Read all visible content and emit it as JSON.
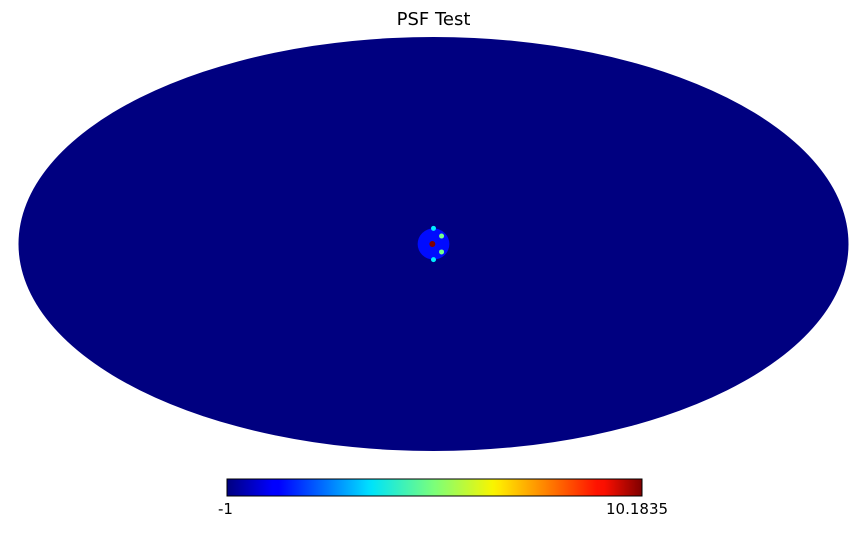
{
  "chart_data": {
    "type": "heatmap",
    "projection": "mollweide",
    "title": "PSF Test",
    "colormap": "jet",
    "colorbar": {
      "min": -1,
      "max": 10.1835,
      "min_label": "-1",
      "max_label": "10.1835",
      "orientation": "horizontal",
      "placement": "bottom"
    },
    "background_value": -1,
    "features": [
      {
        "name": "central-disk",
        "lon": 0,
        "lat": 0,
        "radius_deg": 5.5,
        "value": 0.0
      },
      {
        "name": "center-peak",
        "lon": 0.5,
        "lat": 0,
        "value": 10.1835
      },
      {
        "name": "top-spot",
        "lon": 0,
        "lat": 5.5,
        "value": 3.0
      },
      {
        "name": "bottom-spot",
        "lon": 0,
        "lat": -5.5,
        "value": 3.0
      },
      {
        "name": "upper-right-spot",
        "lon": -3.5,
        "lat": 2.8,
        "value": 4.5
      },
      {
        "name": "lower-right-spot",
        "lon": -3.5,
        "lat": -2.8,
        "value": 4.5
      }
    ]
  }
}
